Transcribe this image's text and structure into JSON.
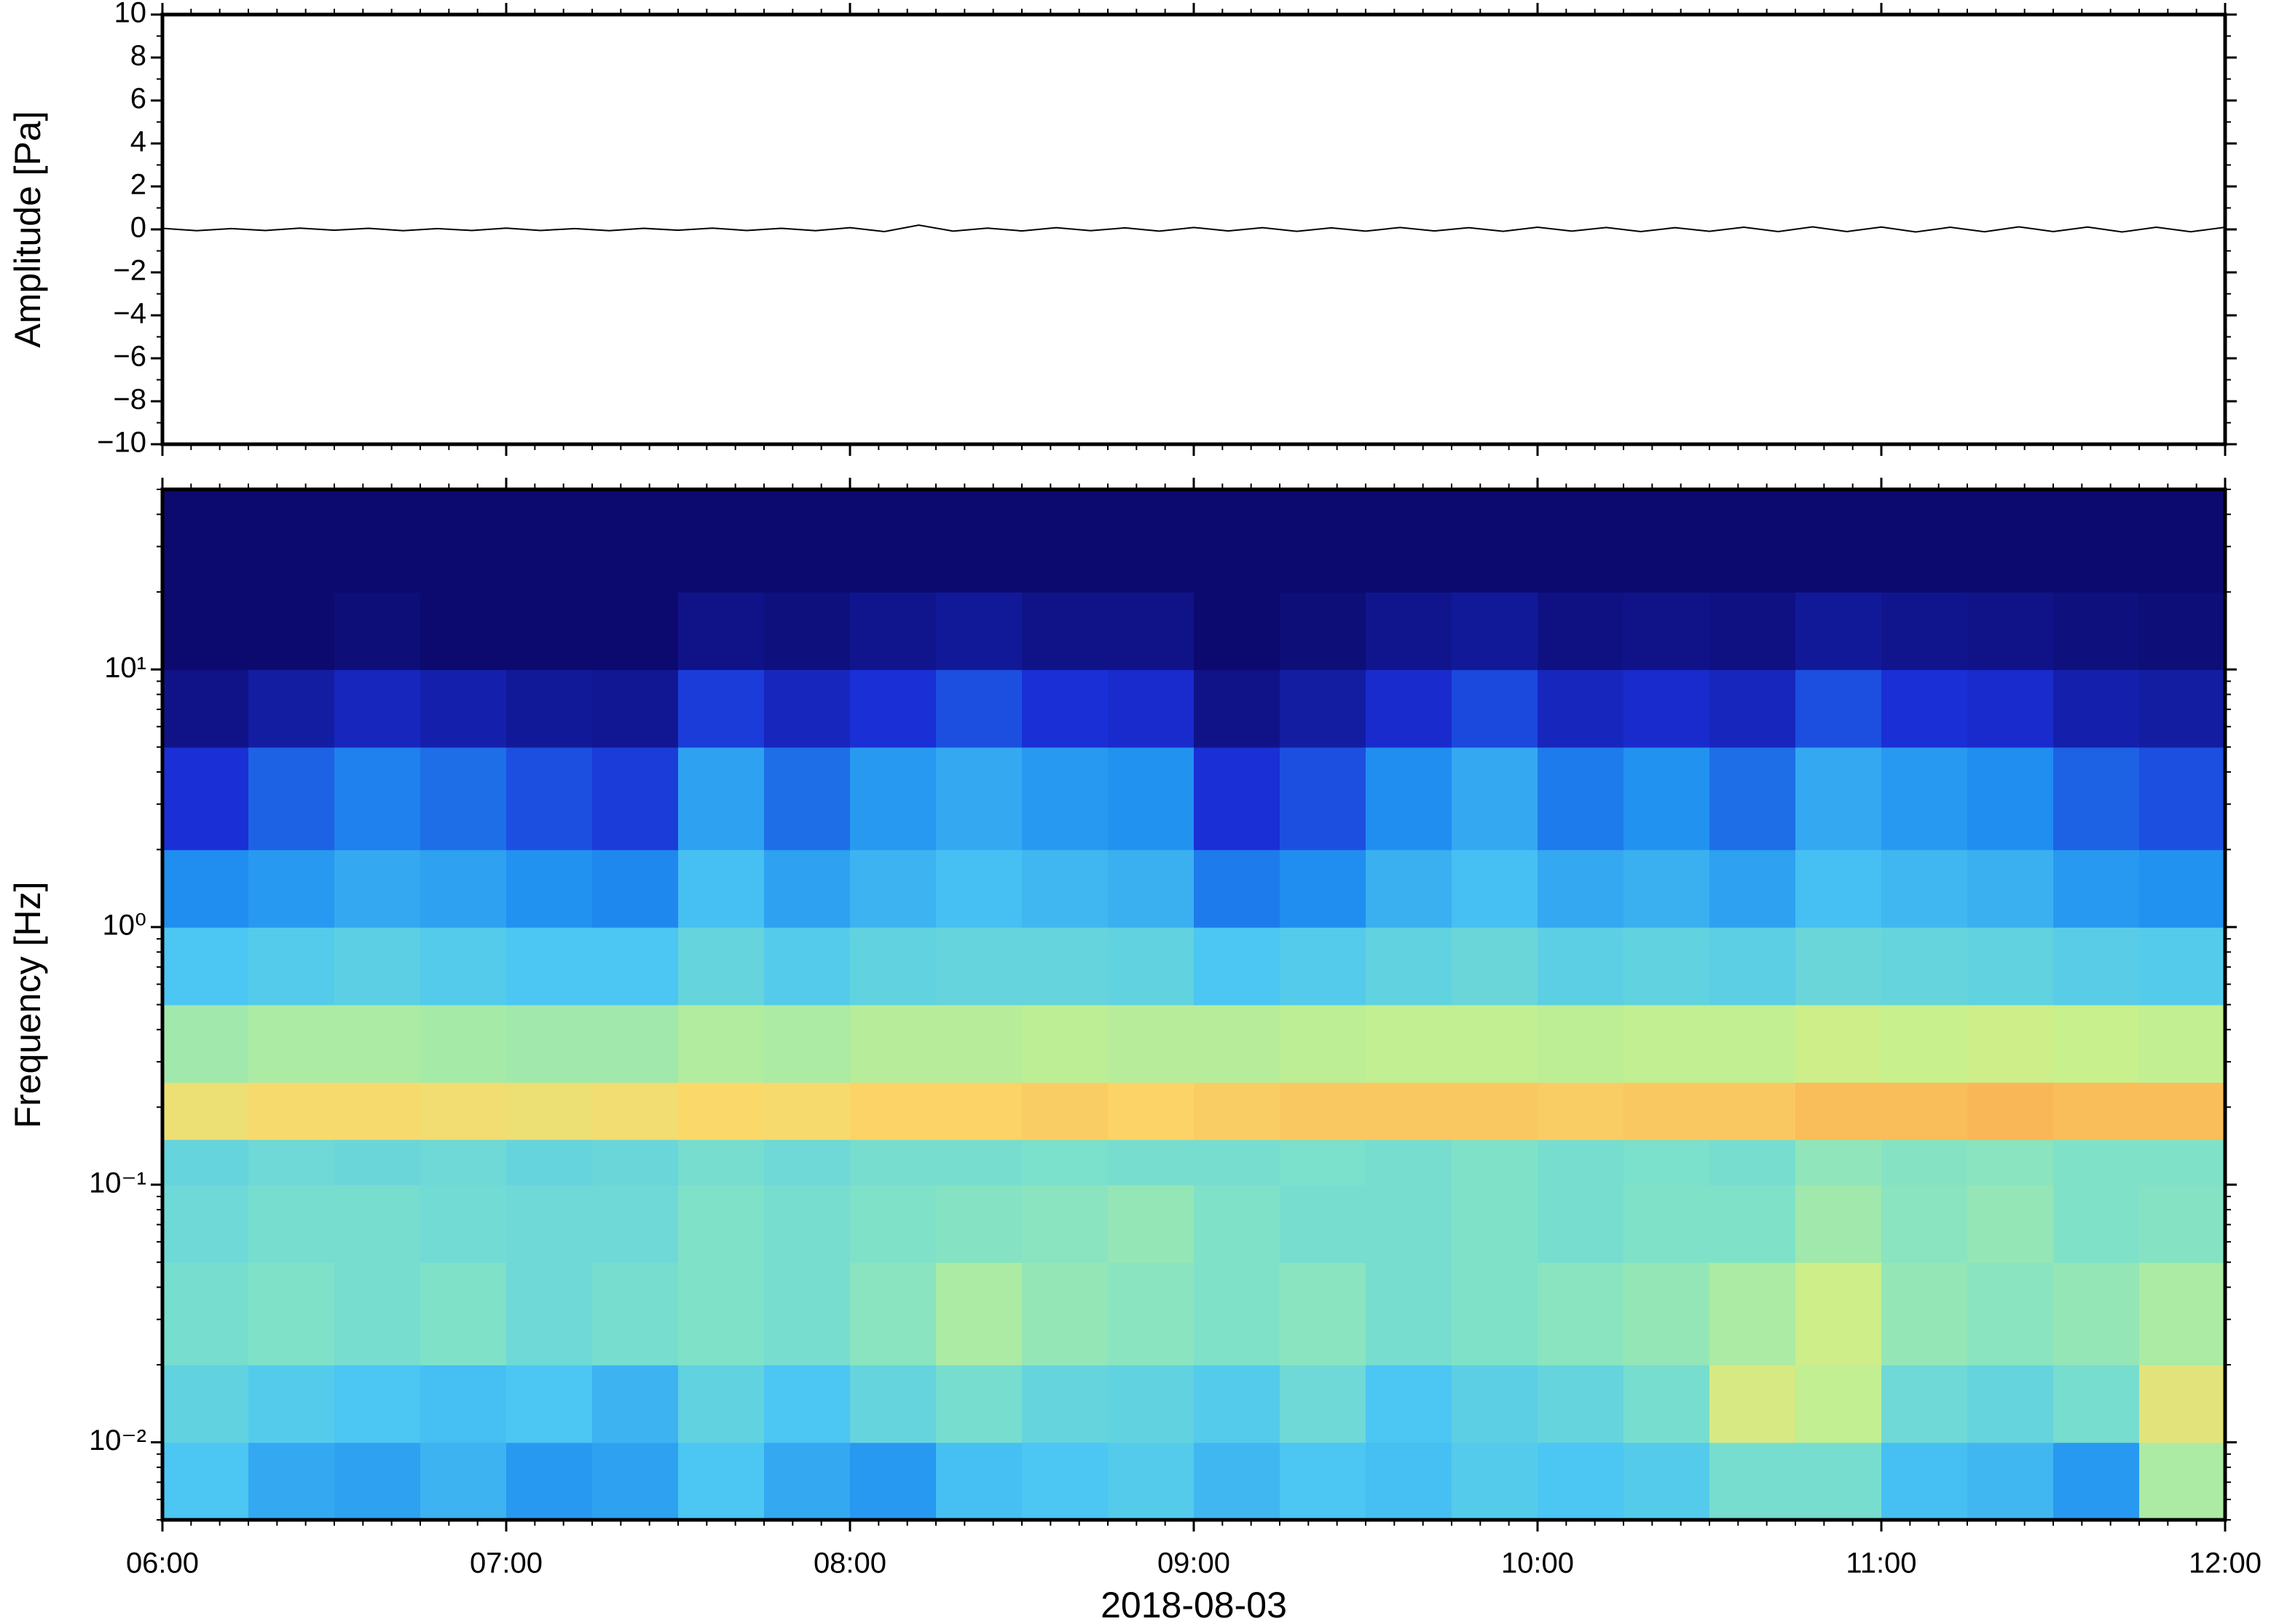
{
  "chart_data": [
    {
      "type": "line",
      "ylabel": "Amplitude [Pa]",
      "color": "#000000",
      "x": [
        6.0,
        6.1,
        6.2,
        6.3,
        6.4,
        6.5,
        6.6,
        6.7,
        6.8,
        6.9,
        7.0,
        7.1,
        7.2,
        7.3,
        7.4,
        7.5,
        7.6,
        7.7,
        7.8,
        7.9,
        8.0,
        8.1,
        8.2,
        8.3,
        8.4,
        8.5,
        8.6,
        8.7,
        8.8,
        8.9,
        9.0,
        9.1,
        9.2,
        9.3,
        9.4,
        9.5,
        9.6,
        9.7,
        9.8,
        9.9,
        10.0,
        10.1,
        10.2,
        10.3,
        10.4,
        10.5,
        10.6,
        10.7,
        10.8,
        10.9,
        11.0,
        11.1,
        11.2,
        11.3,
        11.4,
        11.5,
        11.6,
        11.7,
        11.8,
        11.9,
        12.0
      ],
      "values": [
        0.05,
        -0.06,
        0.04,
        -0.05,
        0.06,
        -0.04,
        0.05,
        -0.06,
        0.04,
        -0.05,
        0.06,
        -0.05,
        0.04,
        -0.06,
        0.05,
        -0.04,
        0.06,
        -0.05,
        0.05,
        -0.06,
        0.08,
        -0.1,
        0.2,
        -0.08,
        0.06,
        -0.07,
        0.08,
        -0.06,
        0.07,
        -0.08,
        0.09,
        -0.07,
        0.08,
        -0.09,
        0.07,
        -0.08,
        0.09,
        -0.07,
        0.08,
        -0.09,
        0.1,
        -0.08,
        0.09,
        -0.1,
        0.08,
        -0.09,
        0.1,
        -0.1,
        0.12,
        -0.1,
        0.11,
        -0.12,
        0.1,
        -0.11,
        0.12,
        -0.1,
        0.11,
        -0.12,
        0.1,
        -0.11,
        0.1
      ],
      "xlim": [
        6,
        12
      ],
      "xticks": [
        6,
        7,
        8,
        9,
        10,
        11,
        12
      ],
      "ylim": [
        -10,
        10
      ],
      "yticks": [
        {
          "value": -10,
          "label": "−10"
        },
        {
          "value": -8,
          "label": "−8"
        },
        {
          "value": -6,
          "label": "−6"
        },
        {
          "value": -4,
          "label": "−4"
        },
        {
          "value": -2,
          "label": "−2"
        },
        0,
        2,
        4,
        6,
        8,
        10
      ]
    },
    {
      "type": "heatmap",
      "ylabel": "Frequency [Hz]",
      "xlabel": "2018-08-03",
      "log_y": true,
      "xlim": [
        6,
        12
      ],
      "xticks": [
        {
          "value": 6,
          "label": "06:00"
        },
        {
          "value": 7,
          "label": "07:00"
        },
        {
          "value": 8,
          "label": "08:00"
        },
        {
          "value": 9,
          "label": "09:00"
        },
        {
          "value": 10,
          "label": "10:00"
        },
        {
          "value": 11,
          "label": "11:00"
        },
        {
          "value": 12,
          "label": "12:00"
        }
      ],
      "ylim": [
        0.005,
        50
      ],
      "yticks": [
        {
          "value": 0.01,
          "label": "10⁻²"
        },
        {
          "value": 0.1,
          "label": "10⁻¹"
        },
        {
          "value": 1,
          "label": "10⁰"
        },
        {
          "value": 10,
          "label": "10¹"
        }
      ],
      "xbins": [
        6,
        6.25,
        6.5,
        6.75,
        7,
        7.25,
        7.5,
        7.75,
        8,
        8.25,
        8.5,
        8.75,
        9,
        9.25,
        9.5,
        9.75,
        10,
        10.25,
        10.5,
        10.75,
        11,
        11.25,
        11.5,
        11.75,
        12
      ],
      "ybins": [
        0.005,
        0.01,
        0.02,
        0.05,
        0.1,
        0.15,
        0.25,
        0.5,
        1,
        2,
        5,
        10,
        20,
        50
      ],
      "colorscale": [
        {
          "value": 0,
          "color": "#0c0a6e"
        },
        {
          "value": 0.2,
          "color": "#1a2fd6"
        },
        {
          "value": 0.35,
          "color": "#1f8ef0"
        },
        {
          "value": 0.5,
          "color": "#4cc6f2"
        },
        {
          "value": 0.62,
          "color": "#7fe2c8"
        },
        {
          "value": 0.75,
          "color": "#c8f08c"
        },
        {
          "value": 0.85,
          "color": "#fbd86a"
        },
        {
          "value": 1,
          "color": "#f6863a"
        }
      ],
      "z": [
        [
          0.5,
          0.42,
          0.4,
          0.45,
          0.38,
          0.4,
          0.5,
          0.42,
          0.38,
          0.48,
          0.5,
          0.52,
          0.46,
          0.5,
          0.48,
          0.52,
          0.5,
          0.52,
          0.6,
          0.6,
          0.48,
          0.46,
          0.38,
          0.7
        ],
        [
          0.55,
          0.52,
          0.5,
          0.48,
          0.5,
          0.45,
          0.55,
          0.5,
          0.56,
          0.6,
          0.56,
          0.55,
          0.52,
          0.58,
          0.5,
          0.54,
          0.56,
          0.6,
          0.78,
          0.74,
          0.58,
          0.56,
          0.6,
          0.8
        ],
        [
          0.6,
          0.62,
          0.6,
          0.62,
          0.58,
          0.6,
          0.62,
          0.6,
          0.64,
          0.7,
          0.66,
          0.64,
          0.62,
          0.64,
          0.6,
          0.62,
          0.64,
          0.66,
          0.7,
          0.76,
          0.66,
          0.64,
          0.66,
          0.7
        ],
        [
          0.58,
          0.6,
          0.6,
          0.59,
          0.58,
          0.58,
          0.62,
          0.6,
          0.62,
          0.63,
          0.64,
          0.66,
          0.62,
          0.6,
          0.6,
          0.62,
          0.6,
          0.62,
          0.62,
          0.68,
          0.64,
          0.66,
          0.62,
          0.63
        ],
        [
          0.56,
          0.58,
          0.57,
          0.58,
          0.56,
          0.57,
          0.6,
          0.58,
          0.6,
          0.6,
          0.61,
          0.6,
          0.6,
          0.61,
          0.6,
          0.62,
          0.6,
          0.61,
          0.6,
          0.65,
          0.63,
          0.64,
          0.62,
          0.62
        ],
        [
          0.82,
          0.84,
          0.84,
          0.83,
          0.82,
          0.83,
          0.85,
          0.84,
          0.86,
          0.86,
          0.87,
          0.86,
          0.87,
          0.88,
          0.88,
          0.88,
          0.87,
          0.88,
          0.88,
          0.9,
          0.9,
          0.91,
          0.9,
          0.9
        ],
        [
          0.68,
          0.7,
          0.7,
          0.69,
          0.68,
          0.68,
          0.71,
          0.7,
          0.72,
          0.72,
          0.73,
          0.72,
          0.72,
          0.73,
          0.74,
          0.74,
          0.73,
          0.74,
          0.74,
          0.76,
          0.75,
          0.76,
          0.75,
          0.74
        ],
        [
          0.5,
          0.52,
          0.54,
          0.52,
          0.5,
          0.5,
          0.56,
          0.52,
          0.55,
          0.56,
          0.56,
          0.55,
          0.5,
          0.52,
          0.55,
          0.57,
          0.54,
          0.55,
          0.54,
          0.57,
          0.56,
          0.55,
          0.53,
          0.52
        ],
        [
          0.35,
          0.38,
          0.42,
          0.4,
          0.36,
          0.34,
          0.48,
          0.4,
          0.45,
          0.48,
          0.46,
          0.44,
          0.32,
          0.35,
          0.44,
          0.48,
          0.42,
          0.44,
          0.4,
          0.48,
          0.46,
          0.44,
          0.38,
          0.36
        ],
        [
          0.2,
          0.28,
          0.33,
          0.3,
          0.25,
          0.22,
          0.4,
          0.3,
          0.38,
          0.42,
          0.38,
          0.36,
          0.2,
          0.25,
          0.35,
          0.42,
          0.32,
          0.36,
          0.3,
          0.42,
          0.38,
          0.35,
          0.28,
          0.25
        ],
        [
          0.05,
          0.1,
          0.15,
          0.12,
          0.08,
          0.07,
          0.22,
          0.15,
          0.2,
          0.25,
          0.2,
          0.18,
          0.05,
          0.1,
          0.18,
          0.24,
          0.15,
          0.18,
          0.15,
          0.25,
          0.2,
          0.18,
          0.12,
          0.1
        ],
        [
          0,
          0,
          0.02,
          0,
          0,
          0,
          0.05,
          0.03,
          0.06,
          0.08,
          0.05,
          0.05,
          0,
          0.02,
          0.06,
          0.08,
          0.04,
          0.05,
          0.04,
          0.08,
          0.06,
          0.05,
          0.03,
          0.02
        ],
        [
          0,
          0,
          0,
          0,
          0,
          0,
          0,
          0,
          0,
          0,
          0,
          0,
          0,
          0,
          0,
          0,
          0,
          0,
          0,
          0,
          0,
          0,
          0,
          0
        ]
      ]
    }
  ]
}
